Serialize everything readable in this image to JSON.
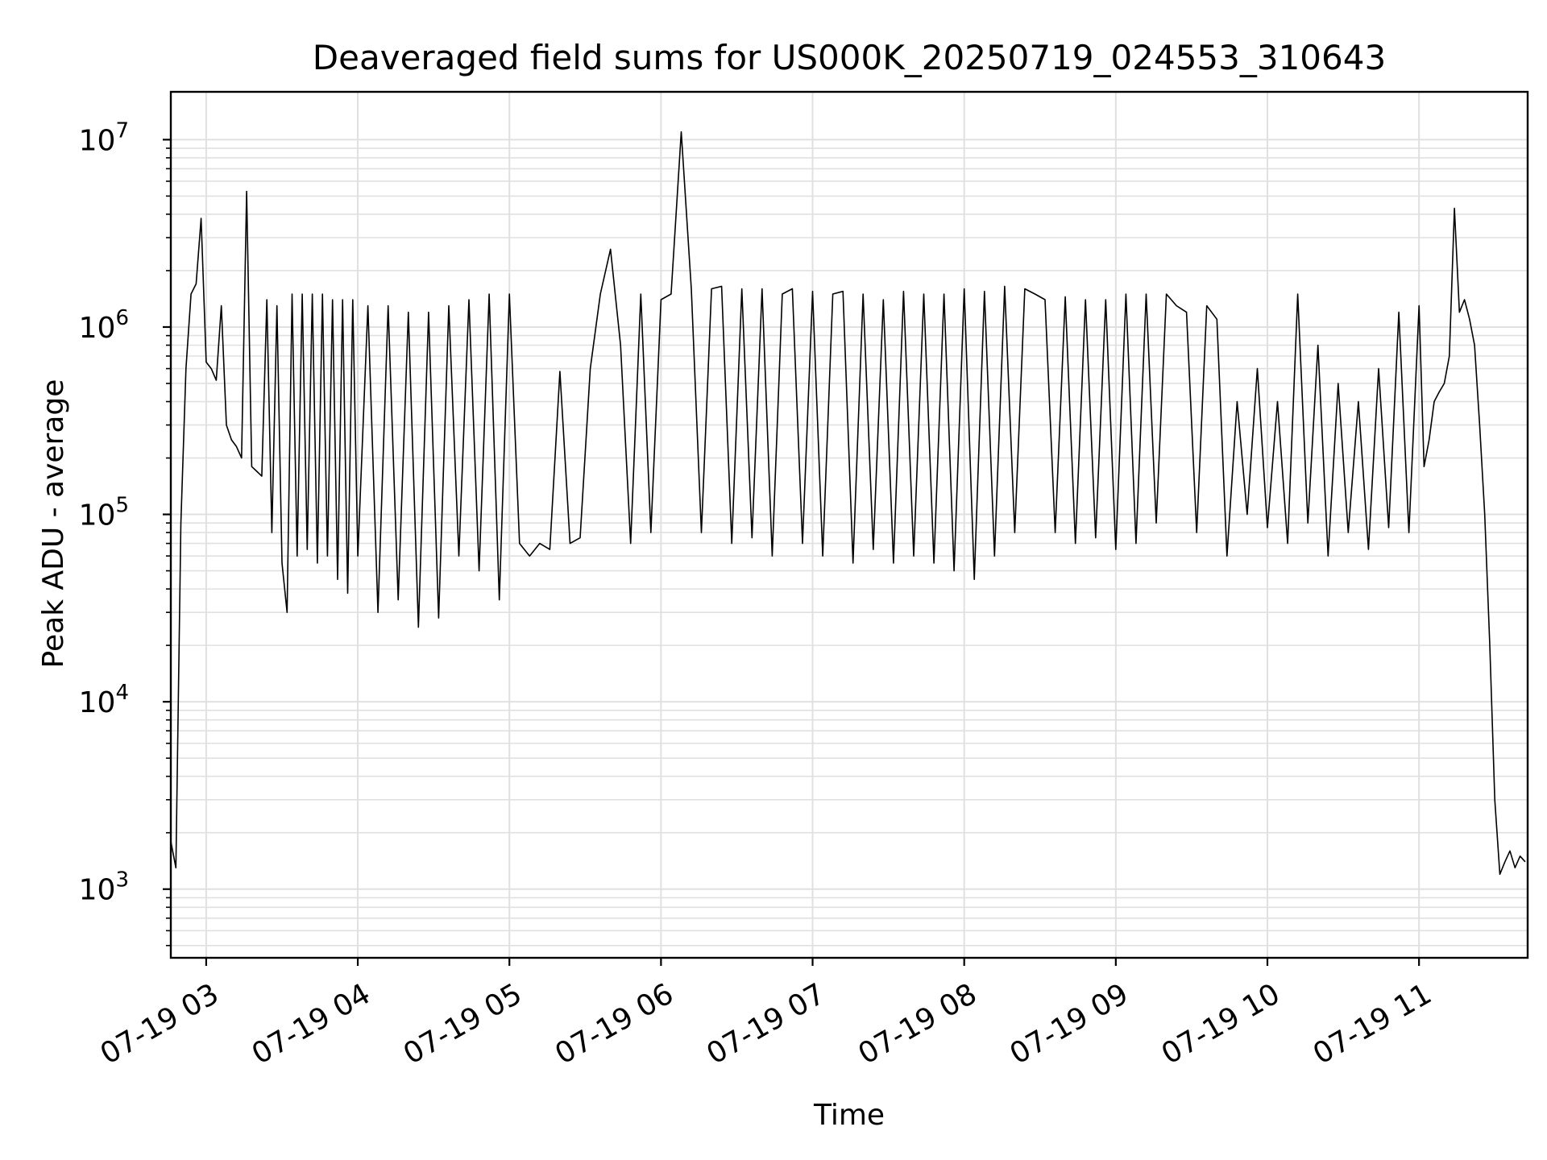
{
  "chart_data": {
    "type": "line",
    "title": "Deaveraged field sums for US000K_20250719_024553_310643",
    "xlabel": "Time",
    "ylabel": "Peak ADU - average",
    "y_scale": "log",
    "ylim": [
      430,
      18000000
    ],
    "xlim": [
      "2025-07-19 02:46",
      "2025-07-19 11:43"
    ],
    "grid": true,
    "legend": "none",
    "line_color": "#000000",
    "grid_color": "#e0e0e0",
    "x_tick_labels": [
      "07-19 03",
      "07-19 04",
      "07-19 05",
      "07-19 06",
      "07-19 07",
      "07-19 08",
      "07-19 09",
      "07-19 10",
      "07-19 11"
    ],
    "y_tick_labels": [
      {
        "base": "10",
        "exp": "3"
      },
      {
        "base": "10",
        "exp": "4"
      },
      {
        "base": "10",
        "exp": "5"
      },
      {
        "base": "10",
        "exp": "6"
      },
      {
        "base": "10",
        "exp": "7"
      }
    ],
    "series": [
      {
        "x": [
          "02:46",
          "02:48",
          "02:50",
          "02:52",
          "02:54",
          "02:56",
          "02:58",
          "03:00",
          "03:02",
          "03:04",
          "03:06",
          "03:08",
          "03:10",
          "03:12",
          "03:14",
          "03:16",
          "03:18",
          "03:20",
          "03:22",
          "03:24",
          "03:26",
          "03:28",
          "03:30",
          "03:32",
          "03:34",
          "03:36",
          "03:38",
          "03:40",
          "03:42",
          "03:44",
          "03:46",
          "03:48",
          "03:50",
          "03:52",
          "03:54",
          "03:56",
          "03:58",
          "04:00",
          "04:04",
          "04:08",
          "04:12",
          "04:16",
          "04:20",
          "04:24",
          "04:28",
          "04:32",
          "04:36",
          "04:40",
          "04:44",
          "04:48",
          "04:52",
          "04:56",
          "05:00",
          "05:04",
          "05:08",
          "05:12",
          "05:16",
          "05:20",
          "05:24",
          "05:28",
          "05:32",
          "05:36",
          "05:40",
          "05:44",
          "05:48",
          "05:52",
          "05:56",
          "06:00",
          "06:04",
          "06:08",
          "06:12",
          "06:16",
          "06:20",
          "06:24",
          "06:28",
          "06:32",
          "06:36",
          "06:40",
          "06:44",
          "06:48",
          "06:52",
          "06:56",
          "07:00",
          "07:04",
          "07:08",
          "07:12",
          "07:16",
          "07:20",
          "07:24",
          "07:28",
          "07:32",
          "07:36",
          "07:40",
          "07:44",
          "07:48",
          "07:52",
          "07:56",
          "08:00",
          "08:04",
          "08:08",
          "08:12",
          "08:16",
          "08:20",
          "08:24",
          "08:28",
          "08:32",
          "08:36",
          "08:40",
          "08:44",
          "08:48",
          "08:52",
          "08:56",
          "09:00",
          "09:04",
          "09:08",
          "09:12",
          "09:16",
          "09:20",
          "09:24",
          "09:28",
          "09:32",
          "09:36",
          "09:40",
          "09:44",
          "09:48",
          "09:52",
          "09:56",
          "10:00",
          "10:04",
          "10:08",
          "10:12",
          "10:16",
          "10:20",
          "10:24",
          "10:28",
          "10:32",
          "10:36",
          "10:40",
          "10:44",
          "10:48",
          "10:52",
          "10:56",
          "11:00",
          "11:02",
          "11:04",
          "11:06",
          "11:08",
          "11:10",
          "11:12",
          "11:14",
          "11:16",
          "11:18",
          "11:20",
          "11:22",
          "11:24",
          "11:26",
          "11:28",
          "11:30",
          "11:32",
          "11:34",
          "11:36",
          "11:38",
          "11:40",
          "11:42"
        ],
        "y": [
          1800,
          1300,
          90000,
          600000,
          1500000,
          1700000,
          3800000,
          650000,
          600000,
          520000,
          1300000,
          300000,
          250000,
          230000,
          200000,
          5300000,
          180000,
          170000,
          160000,
          1400000,
          80000,
          1300000,
          55000,
          30000,
          1500000,
          60000,
          1500000,
          65000,
          1500000,
          55000,
          1500000,
          60000,
          1400000,
          45000,
          1400000,
          38000,
          1400000,
          60000,
          1300000,
          30000,
          1300000,
          35000,
          1200000,
          25000,
          1200000,
          28000,
          1300000,
          60000,
          1400000,
          50000,
          1500000,
          35000,
          1500000,
          70000,
          60000,
          70000,
          65000,
          580000,
          70000,
          75000,
          600000,
          1500000,
          2600000,
          800000,
          70000,
          1500000,
          80000,
          1400000,
          1500000,
          11000000,
          1600000,
          80000,
          1600000,
          1650000,
          70000,
          1600000,
          75000,
          1600000,
          60000,
          1500000,
          1600000,
          70000,
          1550000,
          60000,
          1500000,
          1550000,
          55000,
          1500000,
          65000,
          1400000,
          55000,
          1550000,
          60000,
          1500000,
          55000,
          1500000,
          50000,
          1600000,
          45000,
          1550000,
          60000,
          1650000,
          80000,
          1600000,
          1500000,
          1400000,
          80000,
          1450000,
          70000,
          1400000,
          75000,
          1400000,
          65000,
          1500000,
          70000,
          1500000,
          90000,
          1500000,
          1300000,
          1200000,
          80000,
          1300000,
          1100000,
          60000,
          400000,
          100000,
          600000,
          85000,
          400000,
          70000,
          1500000,
          90000,
          800000,
          60000,
          500000,
          80000,
          400000,
          65000,
          600000,
          85000,
          1200000,
          80000,
          1300000,
          180000,
          250000,
          400000,
          450000,
          500000,
          700000,
          4300000,
          1200000,
          1400000,
          1100000,
          800000,
          300000,
          100000,
          20000,
          3000,
          1200,
          1400,
          1600,
          1300,
          1500,
          1400
        ]
      }
    ]
  }
}
